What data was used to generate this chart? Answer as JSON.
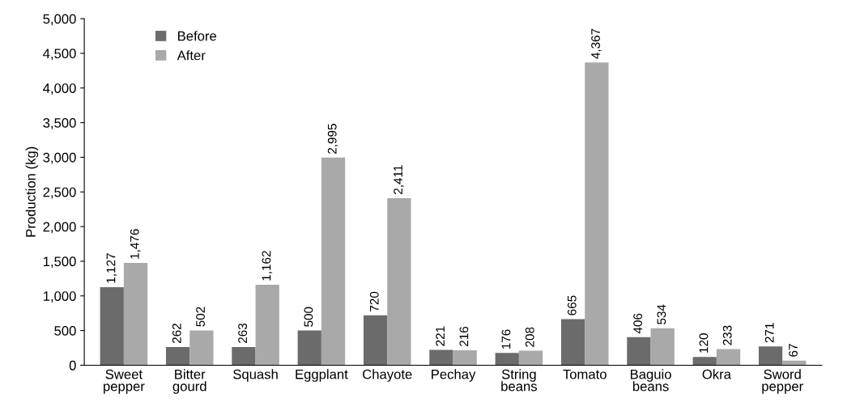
{
  "chart_data": {
    "type": "bar",
    "ylabel": "Production (kg)",
    "categories": [
      "Sweet\npepper",
      "Bitter\ngourd",
      "Squash",
      "Eggplant",
      "Chayote",
      "Pechay",
      "String\nbeans",
      "Tomato",
      "Baguio\nbeans",
      "Okra",
      "Sword\npepper"
    ],
    "series": [
      {
        "name": "Before",
        "color": "#6b6b6b",
        "values": [
          1127,
          262,
          263,
          500,
          720,
          221,
          176,
          665,
          406,
          120,
          271
        ],
        "value_labels": [
          "1,127",
          "262",
          "263",
          "500",
          "720",
          "221",
          "176",
          "665",
          "406",
          "120",
          "271"
        ]
      },
      {
        "name": "After",
        "color": "#a9a9a9",
        "values": [
          1476,
          502,
          1162,
          2995,
          2411,
          216,
          208,
          4367,
          534,
          233,
          67
        ],
        "value_labels": [
          "1,476",
          "502",
          "1,162",
          "2,995",
          "2,411",
          "216",
          "208",
          "4,367",
          "534",
          "233",
          "67"
        ]
      }
    ],
    "ylim": [
      0,
      5000
    ],
    "yticks": [
      0,
      {
        "value": 500,
        "label": "500"
      },
      {
        "value": 1000,
        "label": "1,000"
      },
      {
        "value": 1500,
        "label": "1,500"
      },
      {
        "value": 2000,
        "label": "2,000"
      },
      {
        "value": 2500,
        "label": "2,500"
      },
      {
        "value": 3000,
        "label": "3,000"
      },
      {
        "value": 3500,
        "label": "3,500"
      },
      {
        "value": 4000,
        "label": "4,000"
      },
      {
        "value": 4500,
        "label": "4,500"
      },
      {
        "value": 5000,
        "label": "5,000"
      }
    ],
    "grid": false,
    "legend": "top left"
  }
}
